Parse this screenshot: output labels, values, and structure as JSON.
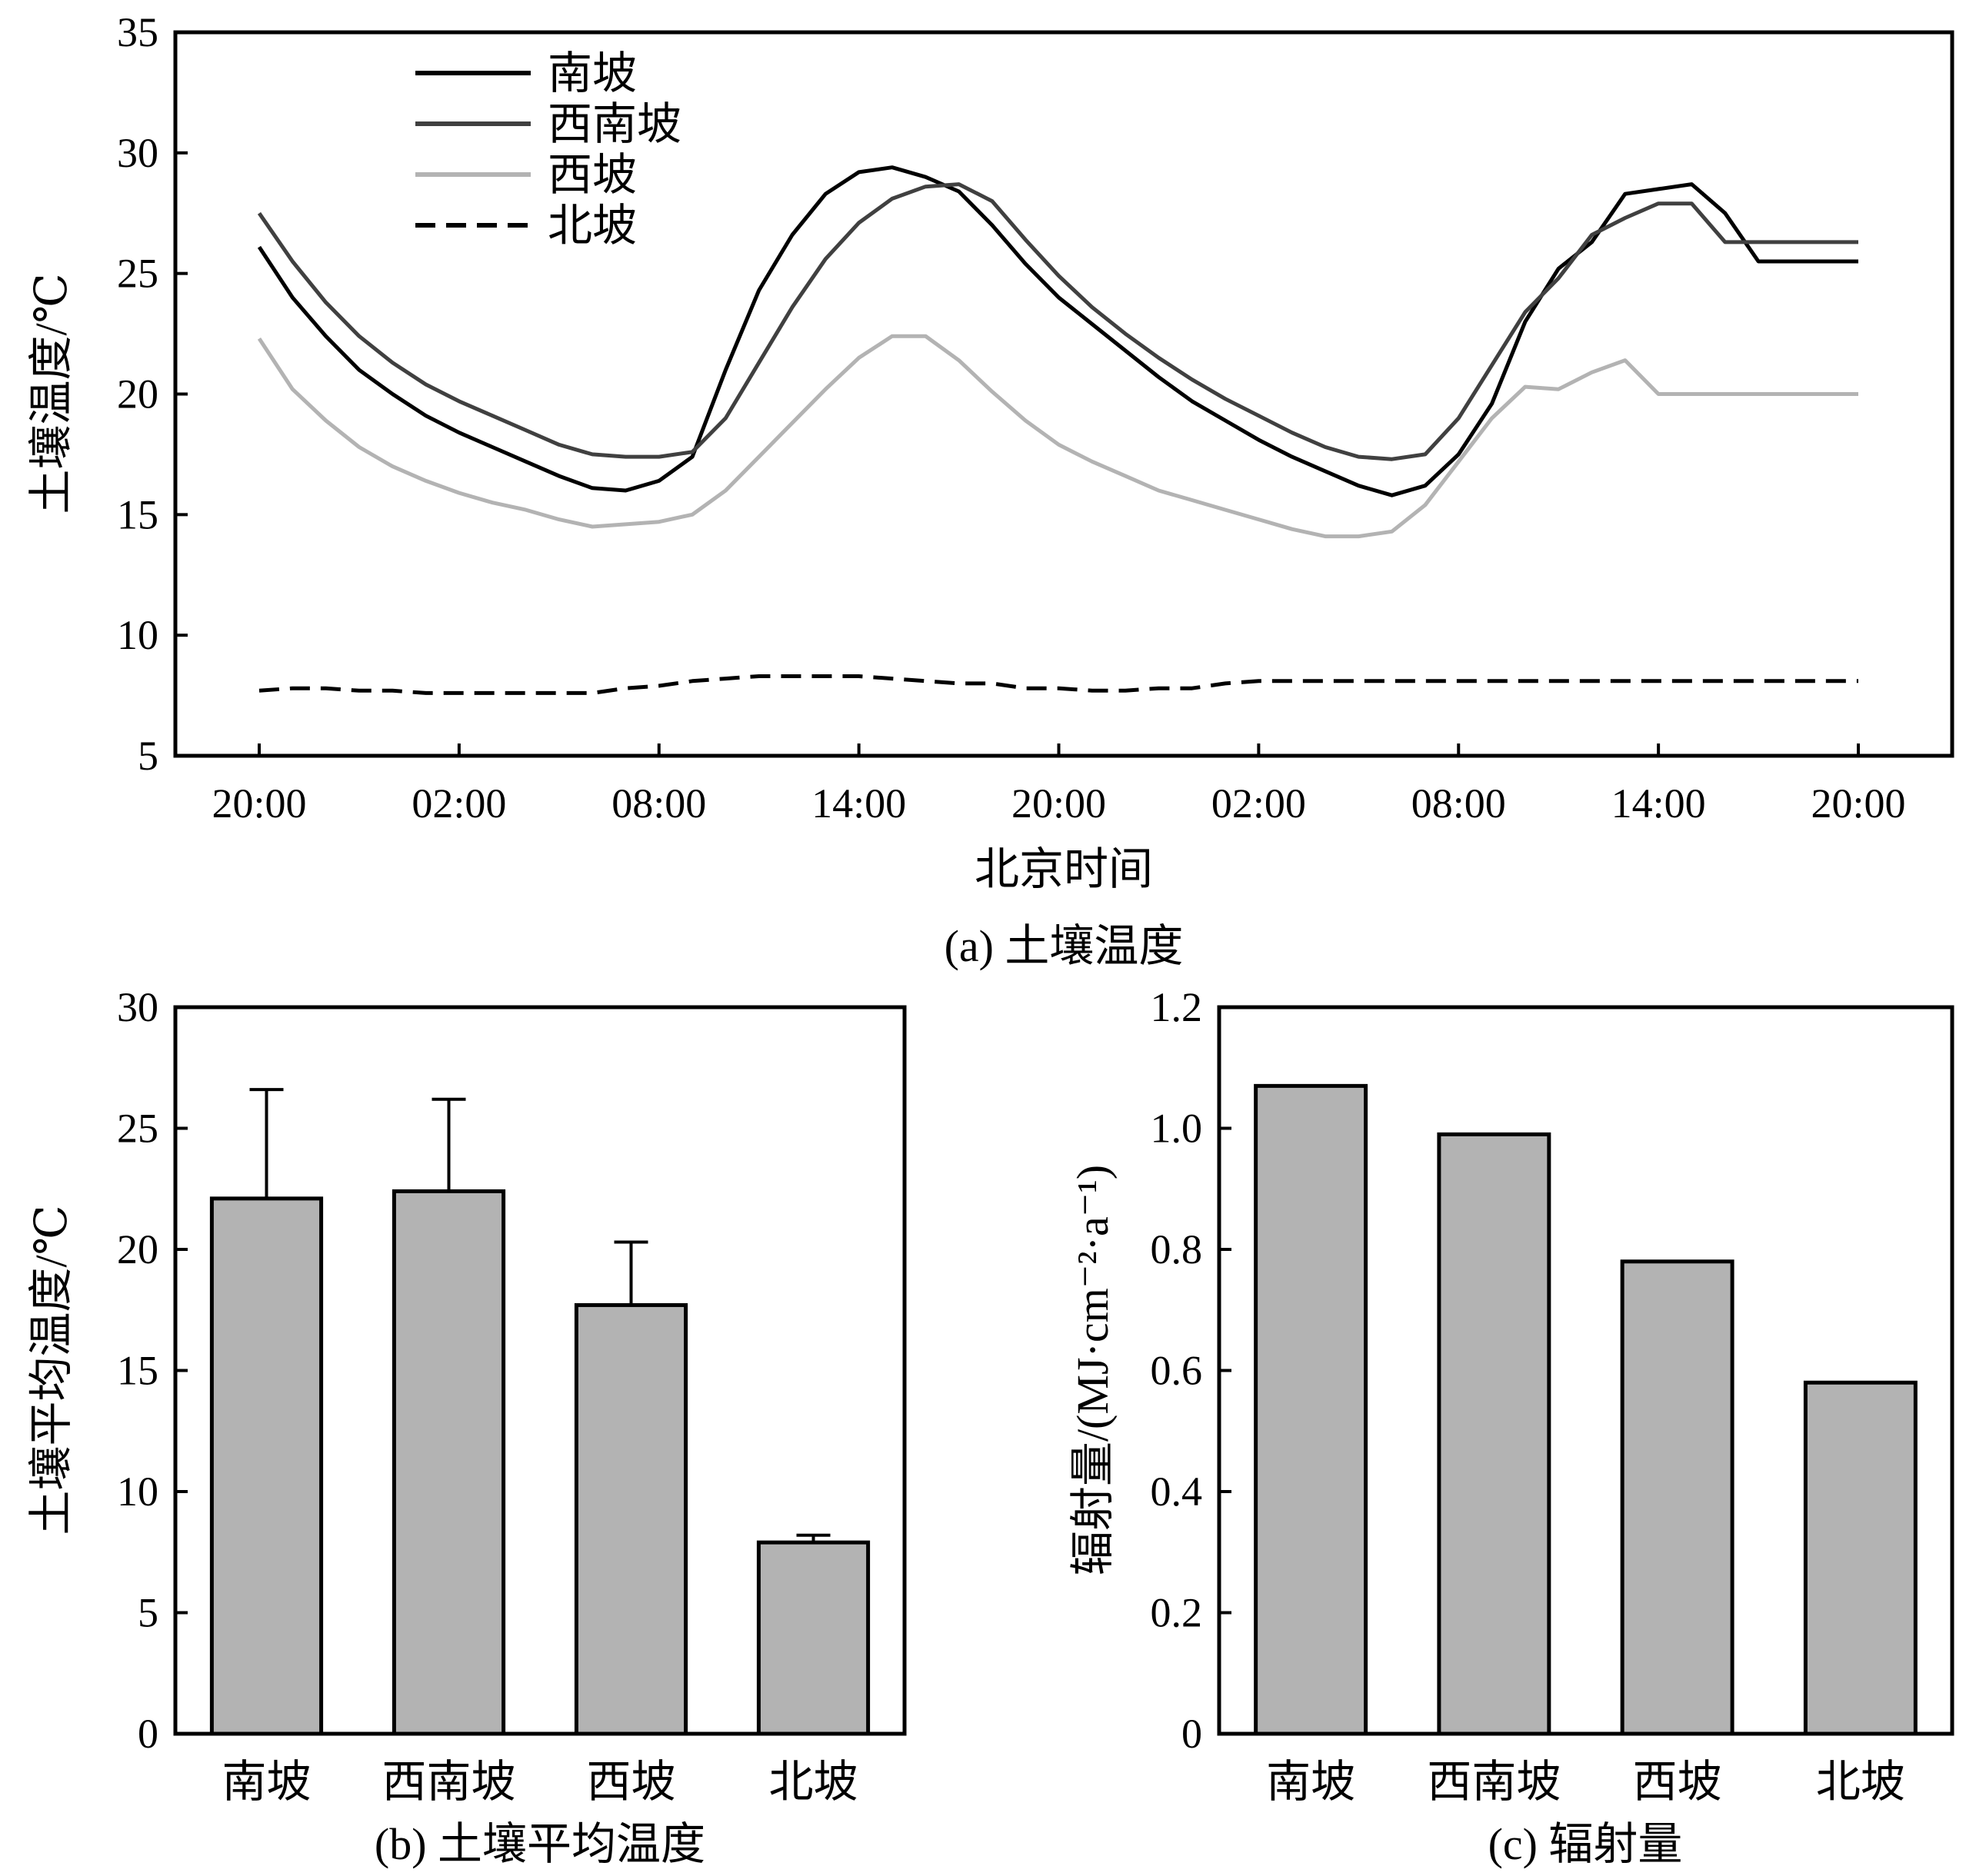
{
  "chart_data": [
    {
      "type": "line",
      "caption": "(a) 土壤温度",
      "xlabel": "北京时间",
      "ylabel": "土壤温度/℃",
      "ylim": [
        5,
        35
      ],
      "yticks": [
        "5",
        "10",
        "15",
        "20",
        "25",
        "30",
        "35"
      ],
      "xticks": [
        "20:00",
        "02:00",
        "08:00",
        "14:00",
        "20:00",
        "02:00",
        "08:00",
        "14:00",
        "20:00"
      ],
      "legend_position": "top-left",
      "x_hours": [
        0,
        1,
        2,
        3,
        4,
        5,
        6,
        7,
        8,
        9,
        10,
        11,
        12,
        13,
        14,
        15,
        16,
        17,
        18,
        19,
        20,
        21,
        22,
        23,
        24,
        25,
        26,
        27,
        28,
        29,
        30,
        31,
        32,
        33,
        34,
        35,
        36,
        37,
        38,
        39,
        40,
        41,
        42,
        43,
        44,
        45,
        46,
        47,
        48
      ],
      "series": [
        {
          "name": "南坡",
          "color": "#000000",
          "style": "solid",
          "values": [
            26.1,
            24.0,
            22.4,
            21.0,
            20.0,
            19.1,
            18.4,
            17.8,
            17.2,
            16.6,
            16.1,
            16.0,
            16.4,
            17.4,
            21.0,
            24.3,
            26.6,
            28.3,
            29.2,
            29.4,
            29.0,
            28.4,
            27.0,
            25.4,
            24.0,
            22.9,
            21.8,
            20.7,
            19.7,
            18.9,
            18.1,
            17.4,
            16.8,
            16.2,
            15.8,
            16.2,
            17.5,
            19.6,
            23.0,
            25.2,
            26.3,
            28.3,
            28.5,
            28.7,
            27.5,
            25.5,
            25.5,
            25.5,
            25.5
          ]
        },
        {
          "name": "西南坡",
          "color": "#404040",
          "style": "solid",
          "values": [
            27.5,
            25.5,
            23.8,
            22.4,
            21.3,
            20.4,
            19.7,
            19.1,
            18.5,
            17.9,
            17.5,
            17.4,
            17.4,
            17.6,
            19.0,
            21.3,
            23.6,
            25.6,
            27.1,
            28.1,
            28.6,
            28.7,
            28.0,
            26.4,
            24.9,
            23.6,
            22.5,
            21.5,
            20.6,
            19.8,
            19.1,
            18.4,
            17.8,
            17.4,
            17.3,
            17.5,
            19.0,
            21.2,
            23.4,
            24.8,
            26.6,
            27.3,
            27.9,
            27.9,
            26.3,
            26.3,
            26.3,
            26.3,
            26.3
          ]
        },
        {
          "name": "西坡",
          "color": "#b3b3b3",
          "style": "solid",
          "values": [
            22.3,
            20.2,
            18.9,
            17.8,
            17.0,
            16.4,
            15.9,
            15.5,
            15.2,
            14.8,
            14.5,
            14.6,
            14.7,
            15.0,
            16.0,
            17.4,
            18.8,
            20.2,
            21.5,
            22.4,
            22.4,
            21.4,
            20.1,
            18.9,
            17.9,
            17.2,
            16.6,
            16.0,
            15.6,
            15.2,
            14.8,
            14.4,
            14.1,
            14.1,
            14.3,
            15.4,
            17.2,
            19.0,
            20.3,
            20.2,
            20.9,
            21.4,
            20.0,
            20.0,
            20.0,
            20.0,
            20.0,
            20.0,
            20.0
          ]
        },
        {
          "name": "北坡",
          "color": "#000000",
          "style": "dashed",
          "values": [
            7.7,
            7.8,
            7.8,
            7.7,
            7.7,
            7.6,
            7.6,
            7.6,
            7.6,
            7.6,
            7.6,
            7.8,
            7.9,
            8.1,
            8.2,
            8.3,
            8.3,
            8.3,
            8.3,
            8.2,
            8.1,
            8.0,
            8.0,
            7.8,
            7.8,
            7.7,
            7.7,
            7.8,
            7.8,
            8.0,
            8.1,
            8.1,
            8.1,
            8.1,
            8.1,
            8.1,
            8.1,
            8.1,
            8.1,
            8.1,
            8.1,
            8.1,
            8.1,
            8.1,
            8.1,
            8.1,
            8.1,
            8.1,
            8.1
          ]
        }
      ]
    },
    {
      "type": "bar",
      "caption": "(b) 土壤平均温度",
      "xlabel": "",
      "ylabel": "土壤平均温度/℃",
      "ylim": [
        0,
        30
      ],
      "yticks": [
        "0",
        "5",
        "10",
        "15",
        "20",
        "25",
        "30"
      ],
      "categories": [
        "南坡",
        "西南坡",
        "西坡",
        "北坡"
      ],
      "values": [
        22.1,
        22.4,
        17.7,
        7.9
      ],
      "error_upper": [
        26.6,
        26.2,
        20.3,
        8.2
      ],
      "bar_color": "#b3b3b3"
    },
    {
      "type": "bar",
      "caption": "(c) 辐射量",
      "xlabel": "",
      "ylabel": "辐射量/(MJ·cm⁻²·a⁻¹)",
      "ylim": [
        0,
        1.2
      ],
      "yticks": [
        "0",
        "0.2",
        "0.4",
        "0.6",
        "0.8",
        "1.0",
        "1.2"
      ],
      "categories": [
        "南坡",
        "西南坡",
        "西坡",
        "北坡"
      ],
      "values": [
        1.07,
        0.99,
        0.78,
        0.58
      ],
      "bar_color": "#b3b3b3"
    }
  ]
}
